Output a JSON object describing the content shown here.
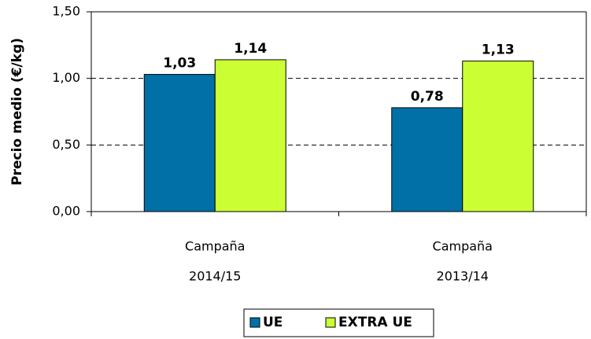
{
  "chart_data": {
    "type": "bar",
    "y_label": "Precio medio (€/kg)",
    "categories": [
      [
        "Campaña",
        "2014/15"
      ],
      [
        "Campaña",
        "2013/14"
      ]
    ],
    "series": [
      {
        "name": "UE",
        "color": "#0070a6",
        "values": [
          1.03,
          0.78
        ],
        "value_labels": [
          "1,03",
          "0,78"
        ]
      },
      {
        "name": "EXTRA UE",
        "color": "#ccff33",
        "values": [
          1.14,
          1.13
        ],
        "value_labels": [
          "1,14",
          "1,13"
        ]
      }
    ],
    "ylim": [
      0,
      1.5
    ],
    "yticks": [
      {
        "value": 0,
        "label": "0,00"
      },
      {
        "value": 0.5,
        "label": "0,50"
      },
      {
        "value": 1,
        "label": "1,00"
      },
      {
        "value": 1.5,
        "label": "1,50"
      }
    ],
    "grid": true,
    "legend": "bottom"
  }
}
